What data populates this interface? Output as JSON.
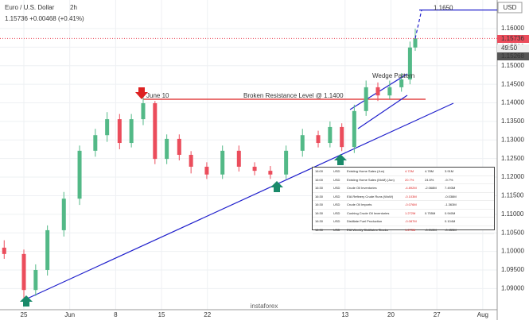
{
  "chart_data": {
    "type": "candlestick",
    "title": "Euro / U.S. Dollar",
    "interval": "2h",
    "quote": "1.15736 +0.00468 (+0.41%)",
    "currency": "USD",
    "price_labels": [
      "1.15736",
      "49:50",
      "1.15268"
    ],
    "up_color": "#53b987",
    "down_color": "#eb4d5c",
    "x": [
      -3.0,
      0,
      1.8,
      3.6,
      6.1,
      8.5,
      10.9,
      12.7,
      14.6,
      16.4,
      18.2,
      20.0,
      21.8,
      23.7,
      25.5,
      27.9,
      30.3,
      32.8,
      35.2,
      37.6,
      40.0,
      42.5,
      44.9,
      46.7,
      48.5,
      50.4,
      52.2,
      54.0,
      55.8,
      57.6,
      58.9,
      59.7
    ],
    "open": [
      1.101,
      1.0993,
      1.0896,
      1.095,
      1.1057,
      1.1142,
      1.1271,
      1.1313,
      1.1356,
      1.1292,
      1.1356,
      1.1399,
      1.1249,
      1.1303,
      1.126,
      1.1228,
      1.1207,
      1.1271,
      1.1228,
      1.1217,
      1.1207,
      1.1271,
      1.1313,
      1.1292,
      1.1335,
      1.1281,
      1.1378,
      1.1442,
      1.142,
      1.1442,
      1.1463,
      1.1549
    ],
    "high": [
      1.103,
      1.1005,
      1.0965,
      1.107,
      1.116,
      1.1285,
      1.133,
      1.1375,
      1.137,
      1.137,
      1.142,
      1.1405,
      1.1315,
      1.1315,
      1.127,
      1.124,
      1.1285,
      1.1285,
      1.124,
      1.123,
      1.1285,
      1.133,
      1.1325,
      1.135,
      1.1345,
      1.1395,
      1.146,
      1.1455,
      1.146,
      1.148,
      1.1565,
      1.16
    ],
    "low": [
      1.098,
      1.087,
      1.088,
      1.0935,
      1.104,
      1.1125,
      1.1255,
      1.1295,
      1.1275,
      1.128,
      1.134,
      1.1235,
      1.1235,
      1.1245,
      1.121,
      1.1195,
      1.1195,
      1.1215,
      1.1205,
      1.1195,
      1.1195,
      1.1255,
      1.128,
      1.128,
      1.127,
      1.1265,
      1.1365,
      1.1405,
      1.141,
      1.143,
      1.145,
      1.154
    ],
    "close": [
      1.0993,
      1.0896,
      1.095,
      1.1057,
      1.1142,
      1.1271,
      1.1313,
      1.1356,
      1.1292,
      1.1356,
      1.1399,
      1.1249,
      1.1303,
      1.126,
      1.1228,
      1.1207,
      1.1271,
      1.1228,
      1.1217,
      1.1207,
      1.1271,
      1.1313,
      1.1292,
      1.1335,
      1.1281,
      1.1378,
      1.1442,
      1.142,
      1.1442,
      1.1463,
      1.1549,
      1.15736
    ],
    "xlim": [
      -3.64,
      72.2
    ],
    "ylim": [
      1.0843,
      1.1677
    ],
    "xticks": [
      {
        "value": 0,
        "label": "25"
      },
      {
        "value": 7,
        "label": "Jun"
      },
      {
        "value": 14,
        "label": "8"
      },
      {
        "value": 21,
        "label": "15"
      },
      {
        "value": 28,
        "label": "22"
      },
      {
        "value": 49,
        "label": "13"
      },
      {
        "value": 56,
        "label": "20"
      },
      {
        "value": 63,
        "label": "27"
      },
      {
        "value": 70,
        "label": "Aug"
      }
    ],
    "yticks": [
      {
        "value": 1.09,
        "label": "1.09000"
      },
      {
        "value": 1.095,
        "label": "1.09500"
      },
      {
        "value": 1.1,
        "label": "1.10000"
      },
      {
        "value": 1.105,
        "label": "1.10500"
      },
      {
        "value": 1.11,
        "label": "1.11000"
      },
      {
        "value": 1.115,
        "label": "1.11500"
      },
      {
        "value": 1.12,
        "label": "1.12000"
      },
      {
        "value": 1.125,
        "label": "1.12500"
      },
      {
        "value": 1.13,
        "label": "1.13000"
      },
      {
        "value": 1.135,
        "label": "1.13500"
      },
      {
        "value": 1.14,
        "label": "1.14000"
      },
      {
        "value": 1.145,
        "label": "1.14500"
      },
      {
        "value": 1.15,
        "label": "1.15000"
      },
      {
        "value": 1.155,
        "label": "1.15500"
      },
      {
        "value": 1.16,
        "label": "1.16000"
      }
    ],
    "grid": true,
    "annotations": {
      "june": "June 10",
      "resistance": "Broken Resistance Level @ 1.1400",
      "wedge": "Wedge Pattern",
      "target": {
        "value": 1.165,
        "label": "1.1650"
      }
    }
  },
  "calendar": {
    "rows": [
      [
        "16:00",
        "USD",
        "Existing Home Sales (Jun)",
        "4.72M",
        "4.78M",
        "3.91M"
      ],
      [
        "16:00",
        "USD",
        "Existing Home Sales (MoM) (Jun)",
        "20.7%",
        "24.5%",
        "-9.7%"
      ],
      [
        "16:30",
        "USD",
        "Crude Oil Inventories",
        "-4.892M",
        "-2.068M",
        "7.493M"
      ],
      [
        "16:30",
        "USD",
        "EIA Refinery Crude Runs (WoW)",
        "-0.103M",
        null,
        "-0.038M"
      ],
      [
        "16:30",
        "USD",
        "Crude Oil Imports",
        "-0.076M",
        null,
        "-1.363M"
      ],
      [
        "16:30",
        "USD",
        "Cushing Crude Oil Inventories",
        "1.272M",
        "0.755M",
        "0.940M"
      ],
      [
        "16:30",
        "USD",
        "Distillate Fuel Production",
        "-0.087M",
        null,
        "0.104M"
      ],
      [
        "16:30",
        "USD",
        "EIA Weekly Distillates Stocks",
        "1.273M",
        "-0.010M",
        "-0.453M"
      ]
    ]
  },
  "watermark": "instaforex"
}
